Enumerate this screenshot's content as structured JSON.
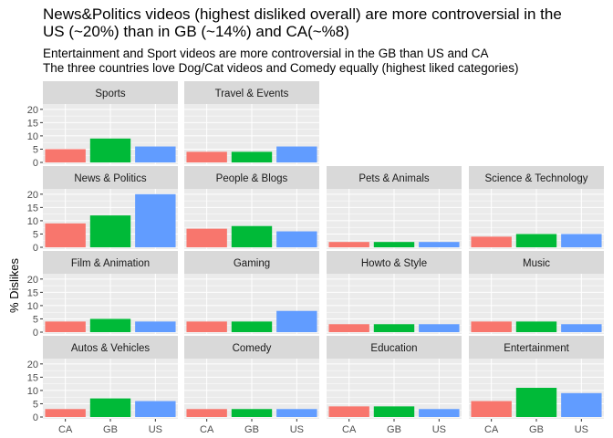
{
  "title_lines": [
    "News&Politics videos (highest disliked overall) are more controversial in the",
    "US (~20%) than in GB (~14%) and CA(~%8)"
  ],
  "subtitle_lines": [
    "Entertainment and Sport videos are more controversial in the GB than US and CA",
    "The three countries love Dog/Cat videos and Comedy equally (highest liked categories)"
  ],
  "colors": {
    "CA": "#F8766D",
    "GB": "#00BA38",
    "US": "#619CFF",
    "strip": "#D9D9D9",
    "panel": "#EBEBEB",
    "grid": "#FFFFFF"
  },
  "chart_data": {
    "type": "bar",
    "layout": "facet_wrap",
    "ylabel": "% Dislikes",
    "xlabel": "",
    "categories": [
      "CA",
      "GB",
      "US"
    ],
    "ylim": [
      0,
      22
    ],
    "yticks": [
      "0",
      "5",
      "10",
      "15",
      "20"
    ],
    "panels": [
      {
        "title": "Sports",
        "values": [
          5,
          9,
          6
        ]
      },
      {
        "title": "Travel & Events",
        "values": [
          4,
          4,
          6
        ]
      },
      null,
      null,
      {
        "title": "News & Politics",
        "values": [
          9,
          12,
          20
        ]
      },
      {
        "title": "People & Blogs",
        "values": [
          7,
          8,
          6
        ]
      },
      {
        "title": "Pets & Animals",
        "values": [
          2,
          2,
          2
        ]
      },
      {
        "title": "Science & Technology",
        "values": [
          4,
          5,
          5
        ]
      },
      {
        "title": "Film & Animation",
        "values": [
          4,
          5,
          4
        ]
      },
      {
        "title": "Gaming",
        "values": [
          4,
          4,
          8
        ]
      },
      {
        "title": "Howto & Style",
        "values": [
          3,
          3,
          3
        ]
      },
      {
        "title": "Music",
        "values": [
          4,
          4,
          3
        ]
      },
      {
        "title": "Autos & Vehicles",
        "values": [
          3,
          7,
          6
        ]
      },
      {
        "title": "Comedy",
        "values": [
          3,
          3,
          3
        ]
      },
      {
        "title": "Education",
        "values": [
          4,
          4,
          3
        ]
      },
      {
        "title": "Entertainment",
        "values": [
          6,
          11,
          9
        ]
      }
    ]
  }
}
